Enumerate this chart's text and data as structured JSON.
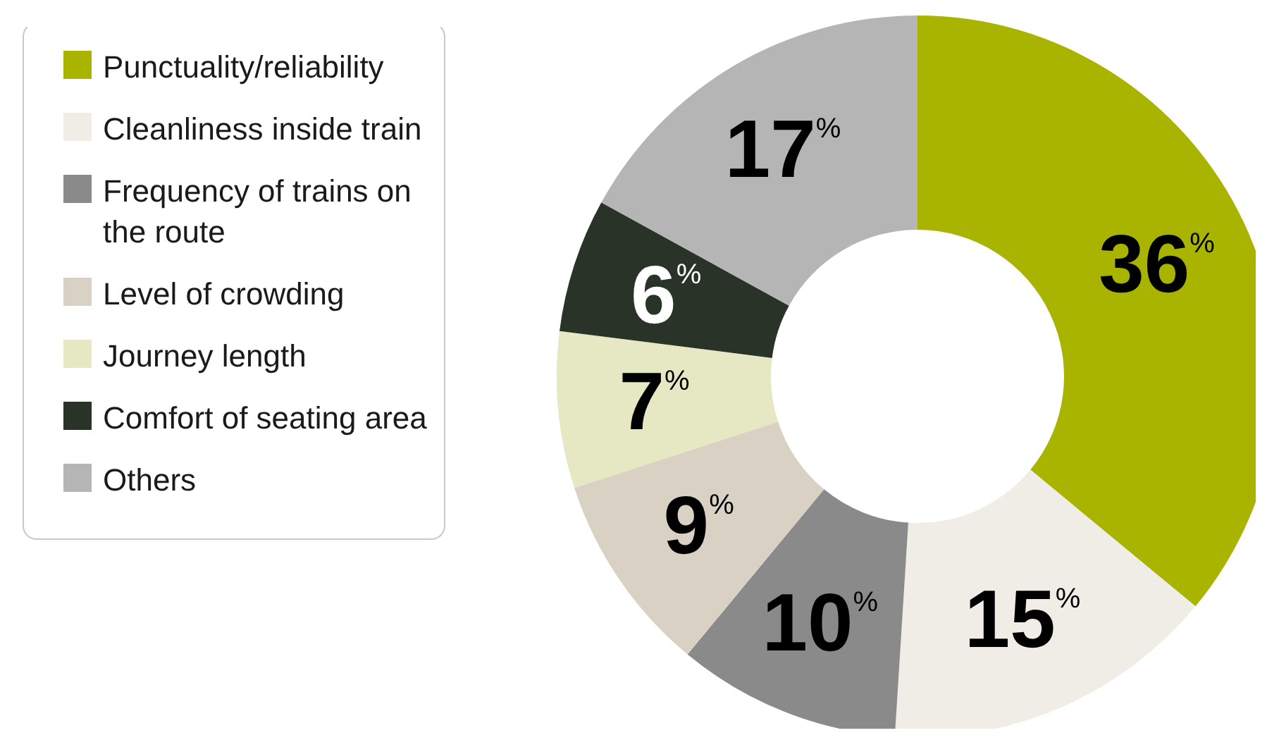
{
  "chart_data": {
    "type": "donut",
    "categories": [
      "Punctuality/reliability",
      "Cleanliness inside train",
      "Frequency of trains on the route",
      "Level of crowding",
      "Journey length",
      "Comfort of seating area",
      "Others"
    ],
    "values": [
      36,
      15,
      10,
      9,
      7,
      6,
      17
    ],
    "colors": [
      "#a8b400",
      "#f0ede6",
      "#8a8a8a",
      "#d9d1c3",
      "#e6e8c3",
      "#2a3328",
      "#b5b5b5"
    ],
    "value_labels": [
      "36%",
      "15%",
      "10%",
      "9%",
      "7%",
      "6%",
      "17%"
    ],
    "legend": "left"
  }
}
